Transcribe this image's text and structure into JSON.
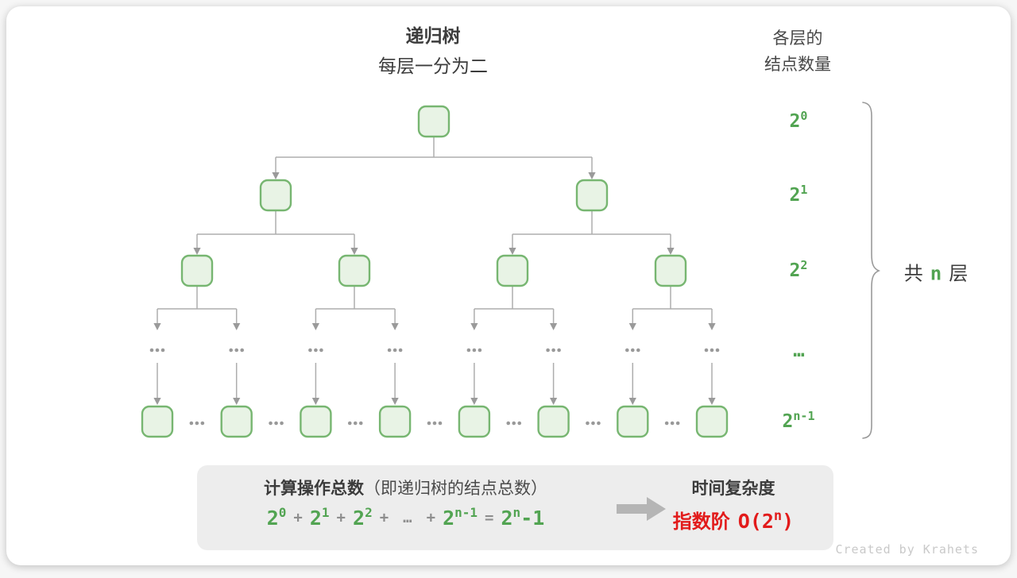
{
  "header": {
    "title": "递归树",
    "subtitle": "每层一分为二",
    "right_title_line1": "各层的",
    "right_title_line2": "结点数量"
  },
  "tree": {
    "levels": [
      {
        "id": "level-0",
        "count": 1,
        "label": {
          "base": "2",
          "sup": "0"
        }
      },
      {
        "id": "level-1",
        "count": 2,
        "label": {
          "base": "2",
          "sup": "1"
        }
      },
      {
        "id": "level-2",
        "count": 4,
        "label": {
          "base": "2",
          "sup": "2"
        }
      },
      {
        "id": "level-ellipsis",
        "count": 8,
        "label": {
          "ellipsis": "…"
        }
      },
      {
        "id": "level-n-1",
        "count": 8,
        "label": {
          "base": "2",
          "sup": "n-1"
        }
      }
    ],
    "gap_ellipsis": "…"
  },
  "annotation": {
    "prefix": "共",
    "highlight": "n",
    "suffix": "层"
  },
  "summary": {
    "heading": "计算操作总数",
    "heading_note": "（即递归树的结点总数）",
    "formula_tokens": [
      {
        "t": "pow",
        "base": "2",
        "sup": "0"
      },
      {
        "t": "op",
        "v": "+"
      },
      {
        "t": "pow",
        "base": "2",
        "sup": "1"
      },
      {
        "t": "op",
        "v": "+"
      },
      {
        "t": "pow",
        "base": "2",
        "sup": "2"
      },
      {
        "t": "op",
        "v": "+"
      },
      {
        "t": "op",
        "v": "…"
      },
      {
        "t": "op",
        "v": "+"
      },
      {
        "t": "pow",
        "base": "2",
        "sup": "n-1"
      },
      {
        "t": "op",
        "v": "="
      },
      {
        "t": "pow",
        "base": "2",
        "sup": "n",
        "trail": "-1"
      }
    ]
  },
  "result": {
    "heading": "时间复杂度",
    "label": "指数阶",
    "big_o": {
      "open": "O(2",
      "sup": "n",
      "close": ")"
    }
  },
  "footer": {
    "credit": "Created by Krahets"
  },
  "colors": {
    "green_text": "#52a452",
    "node_fill": "#e8f3e5",
    "node_border": "#77b671",
    "edge": "#adadad",
    "arrowhead": "#9a9a9a",
    "dots": "#999999",
    "red": "#e21b1b",
    "box_bg": "#ededed",
    "dark_text": "#3b3b3b",
    "operator_gray": "#8e8e8e",
    "credit_gray": "#c9c9c9"
  }
}
